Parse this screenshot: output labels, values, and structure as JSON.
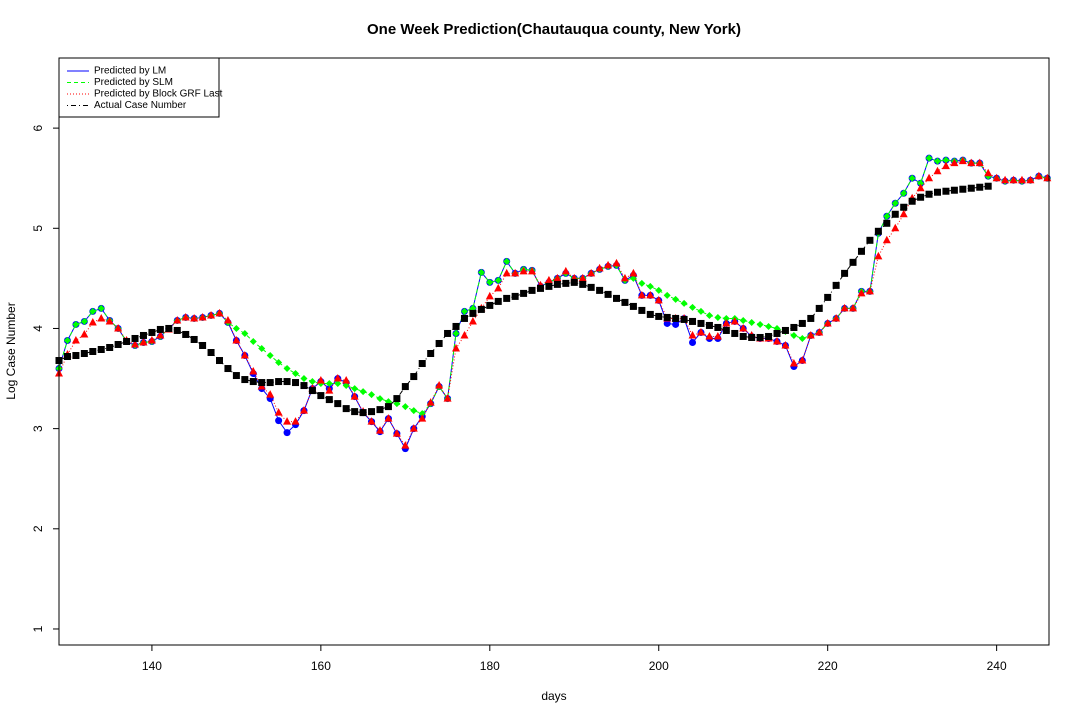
{
  "chart_data": {
    "type": "line",
    "title": "One Week Prediction(Chautauqua county, New York)",
    "x_label": "days",
    "y_label": "Log Case Number",
    "legend": "topleft",
    "xlim": [
      129,
      246.2
    ],
    "ylim": [
      0.84,
      6.7
    ],
    "xticks": [
      140,
      160,
      180,
      200,
      220,
      240
    ],
    "yticks": [
      1,
      2,
      3,
      4,
      5,
      6
    ],
    "x": [
      129,
      130,
      131,
      132,
      133,
      134,
      135,
      136,
      137,
      138,
      139,
      140,
      141,
      142,
      143,
      144,
      145,
      146,
      147,
      148,
      149,
      150,
      151,
      152,
      153,
      154,
      155,
      156,
      157,
      158,
      159,
      160,
      161,
      162,
      163,
      164,
      165,
      166,
      167,
      168,
      169,
      170,
      171,
      172,
      173,
      174,
      175,
      176,
      177,
      178,
      179,
      180,
      181,
      182,
      183,
      184,
      185,
      186,
      187,
      188,
      189,
      190,
      191,
      192,
      193,
      194,
      195,
      196,
      197,
      198,
      199,
      200,
      201,
      202,
      203,
      204,
      205,
      206,
      207,
      208,
      209,
      210,
      211,
      212,
      213,
      214,
      215,
      216,
      217,
      218,
      219,
      220,
      221,
      222,
      223,
      224,
      225,
      226,
      227,
      228,
      229,
      230,
      231,
      232,
      233,
      234,
      235,
      236,
      237,
      238,
      239,
      240,
      241,
      242,
      243,
      244,
      245,
      246
    ],
    "series": [
      {
        "name": "Predicted by LM",
        "color": "#0000ff",
        "line_style": "solid",
        "marker": "circle",
        "values": [
          3.6,
          3.88,
          4.04,
          4.07,
          4.17,
          4.2,
          4.08,
          4.0,
          3.87,
          3.83,
          3.86,
          3.87,
          3.92,
          4.0,
          4.08,
          4.11,
          4.1,
          4.11,
          4.13,
          4.15,
          4.06,
          3.88,
          3.73,
          3.55,
          3.4,
          3.3,
          3.08,
          2.96,
          3.04,
          3.18,
          3.4,
          3.47,
          3.4,
          3.5,
          3.46,
          3.32,
          3.16,
          3.07,
          2.97,
          3.1,
          2.95,
          2.8,
          3.0,
          3.12,
          3.25,
          3.42,
          3.3,
          3.95,
          4.17,
          4.2,
          4.56,
          4.46,
          4.48,
          4.67,
          4.55,
          4.59,
          4.58,
          4.42,
          4.46,
          4.5,
          4.55,
          4.5,
          4.5,
          4.55,
          4.59,
          4.62,
          4.63,
          4.48,
          4.53,
          4.33,
          4.33,
          4.28,
          4.05,
          4.04,
          4.1,
          3.86,
          3.96,
          3.9,
          3.9,
          4.05,
          4.07,
          4.0,
          3.92,
          3.9,
          3.9,
          3.87,
          3.83,
          3.62,
          3.68,
          3.93,
          3.96,
          4.05,
          4.1,
          4.2,
          4.2,
          4.37,
          4.37,
          4.95,
          5.12,
          5.25,
          5.35,
          5.5,
          5.45,
          5.7,
          5.67,
          5.68,
          5.67,
          5.68,
          5.65,
          5.65,
          5.52,
          5.5,
          5.47,
          5.48,
          5.47,
          5.48,
          5.52,
          5.5
        ]
      },
      {
        "name": "Predicted by SLM",
        "color": "#00ff00",
        "line_style": "dashed",
        "marker": "diamond",
        "values": [
          3.6,
          3.88,
          4.04,
          4.07,
          4.17,
          4.2,
          4.08,
          4.0,
          3.87,
          3.83,
          3.86,
          3.87,
          3.92,
          4.0,
          4.08,
          4.11,
          4.1,
          4.11,
          4.13,
          4.15,
          4.06,
          4.0,
          3.95,
          3.87,
          3.8,
          3.73,
          3.66,
          3.6,
          3.55,
          3.5,
          3.47,
          3.45,
          3.45,
          3.45,
          3.43,
          3.4,
          3.37,
          3.34,
          3.3,
          3.27,
          3.25,
          3.22,
          3.18,
          3.15,
          3.25,
          3.42,
          3.3,
          3.95,
          4.17,
          4.2,
          4.56,
          4.46,
          4.48,
          4.67,
          4.55,
          4.59,
          4.58,
          4.42,
          4.46,
          4.5,
          4.55,
          4.5,
          4.5,
          4.55,
          4.59,
          4.62,
          4.63,
          4.48,
          4.5,
          4.45,
          4.42,
          4.38,
          4.33,
          4.29,
          4.25,
          4.21,
          4.17,
          4.13,
          4.11,
          4.1,
          4.1,
          4.08,
          4.06,
          4.04,
          4.02,
          4.0,
          3.97,
          3.93,
          3.9,
          3.93,
          3.96,
          4.05,
          4.1,
          4.2,
          4.2,
          4.37,
          4.37,
          4.95,
          5.12,
          5.25,
          5.35,
          5.5,
          5.45,
          5.7,
          5.67,
          5.68,
          5.67,
          5.68,
          5.65,
          5.65,
          5.52,
          5.5,
          5.47,
          5.48,
          5.47,
          5.48,
          5.52,
          5.5
        ]
      },
      {
        "name": "Predicted by Block GRF Last",
        "color": "#ff0000",
        "line_style": "dotted",
        "marker": "triangle",
        "values": [
          3.55,
          3.74,
          3.88,
          3.94,
          4.06,
          4.1,
          4.07,
          4.0,
          3.88,
          3.84,
          3.86,
          3.88,
          3.93,
          3.99,
          4.08,
          4.11,
          4.1,
          4.11,
          4.13,
          4.15,
          4.08,
          3.88,
          3.73,
          3.57,
          3.42,
          3.34,
          3.16,
          3.07,
          3.07,
          3.18,
          3.4,
          3.48,
          3.38,
          3.5,
          3.48,
          3.32,
          3.17,
          3.07,
          2.98,
          3.1,
          2.95,
          2.83,
          3.0,
          3.1,
          3.26,
          3.43,
          3.3,
          3.8,
          3.93,
          4.07,
          4.2,
          4.32,
          4.4,
          4.55,
          4.55,
          4.57,
          4.57,
          4.43,
          4.48,
          4.5,
          4.57,
          4.5,
          4.5,
          4.55,
          4.6,
          4.63,
          4.65,
          4.5,
          4.55,
          4.33,
          4.33,
          4.28,
          4.1,
          4.1,
          4.1,
          3.93,
          3.96,
          3.92,
          3.92,
          4.05,
          4.07,
          4.0,
          3.93,
          3.9,
          3.9,
          3.87,
          3.83,
          3.65,
          3.68,
          3.93,
          3.96,
          4.05,
          4.1,
          4.2,
          4.2,
          4.35,
          4.37,
          4.72,
          4.88,
          5.0,
          5.14,
          5.3,
          5.4,
          5.5,
          5.57,
          5.62,
          5.65,
          5.67,
          5.65,
          5.65,
          5.55,
          5.5,
          5.48,
          5.48,
          5.48,
          5.48,
          5.52,
          5.5
        ]
      },
      {
        "name": "Actual Case Number",
        "color": "#000000",
        "line_style": "dotdash",
        "marker": "square",
        "values": [
          3.68,
          3.72,
          3.73,
          3.75,
          3.77,
          3.79,
          3.81,
          3.84,
          3.87,
          3.9,
          3.93,
          3.96,
          3.99,
          4.0,
          3.98,
          3.94,
          3.89,
          3.83,
          3.76,
          3.68,
          3.6,
          3.53,
          3.49,
          3.47,
          3.46,
          3.46,
          3.47,
          3.47,
          3.46,
          3.43,
          3.38,
          3.33,
          3.29,
          3.25,
          3.2,
          3.17,
          3.16,
          3.17,
          3.19,
          3.22,
          3.3,
          3.42,
          3.52,
          3.65,
          3.75,
          3.85,
          3.95,
          4.02,
          4.1,
          4.15,
          4.19,
          4.23,
          4.27,
          4.3,
          4.32,
          4.35,
          4.38,
          4.4,
          4.42,
          4.44,
          4.45,
          4.46,
          4.44,
          4.41,
          4.38,
          4.34,
          4.3,
          4.26,
          4.22,
          4.18,
          4.14,
          4.12,
          4.11,
          4.1,
          4.09,
          4.07,
          4.05,
          4.03,
          4.01,
          3.98,
          3.95,
          3.92,
          3.91,
          3.91,
          3.92,
          3.95,
          3.98,
          4.01,
          4.05,
          4.1,
          4.2,
          4.31,
          4.43,
          4.55,
          4.66,
          4.77,
          4.88,
          4.97,
          5.05,
          5.14,
          5.21,
          5.27,
          5.31,
          5.34,
          5.36,
          5.37,
          5.38,
          5.39,
          5.4,
          5.41,
          5.42,
          null,
          null,
          null,
          null,
          null,
          null,
          null
        ]
      }
    ]
  }
}
